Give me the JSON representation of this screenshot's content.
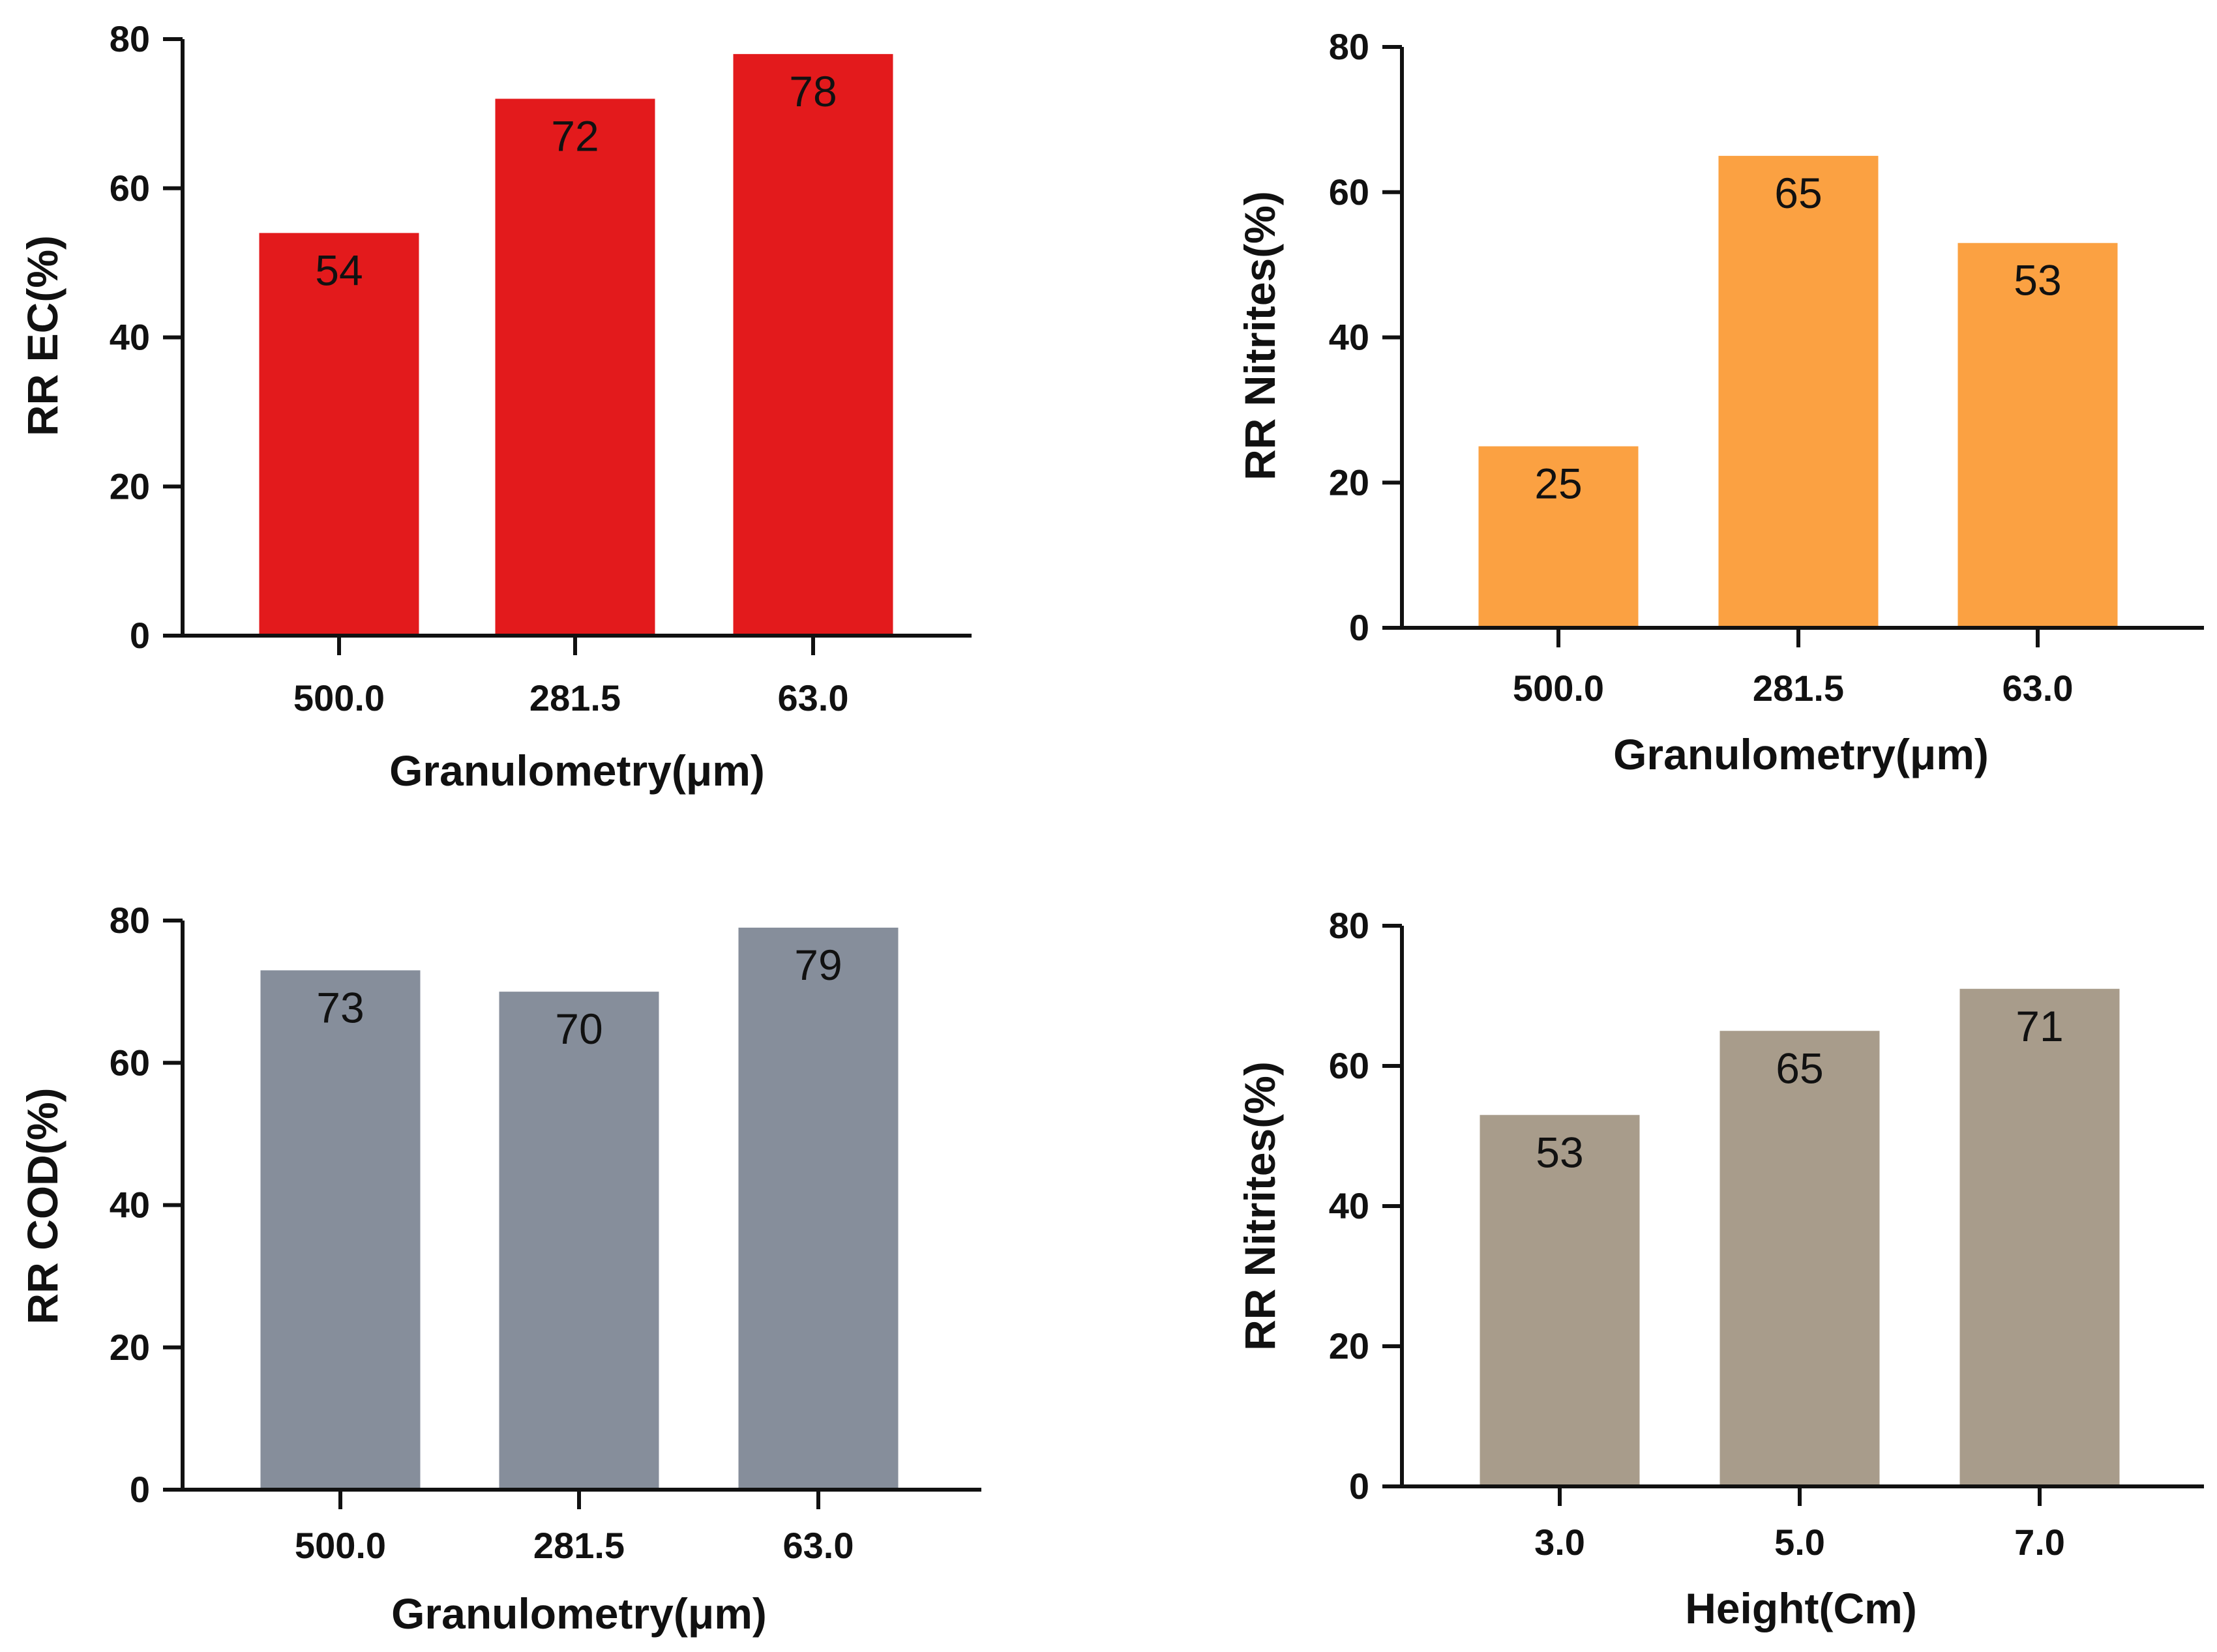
{
  "chart_data": [
    {
      "type": "bar",
      "categories": [
        "500.0",
        "281.5",
        "63.0"
      ],
      "values": [
        54,
        72,
        78
      ],
      "data_labels": [
        "54",
        "72",
        "78"
      ],
      "title": "",
      "xlabel": "Granulometry(μm)",
      "ylabel": "RR EC(%)",
      "ylim": [
        0,
        80
      ],
      "yticks": [
        "0",
        "20",
        "40",
        "60",
        "80"
      ],
      "color": "#e31a1c",
      "grid": false
    },
    {
      "type": "bar",
      "categories": [
        "500.0",
        "281.5",
        "63.0"
      ],
      "values": [
        25,
        65,
        53
      ],
      "data_labels": [
        "25",
        "65",
        "53"
      ],
      "title": "",
      "xlabel": "Granulometry(μm)",
      "ylabel": "RR Nitrites(%)",
      "ylim": [
        0,
        80
      ],
      "yticks": [
        "0",
        "20",
        "40",
        "60",
        "80"
      ],
      "color": "#fba142",
      "grid": false
    },
    {
      "type": "bar",
      "categories": [
        "500.0",
        "281.5",
        "63.0"
      ],
      "values": [
        73,
        70,
        79
      ],
      "data_labels": [
        "73",
        "70",
        "79"
      ],
      "title": "",
      "xlabel": "Granulometry(μm)",
      "ylabel": "RR COD(%)",
      "ylim": [
        0,
        80
      ],
      "yticks": [
        "0",
        "20",
        "40",
        "60",
        "80"
      ],
      "color": "#868e9b",
      "grid": false
    },
    {
      "type": "bar",
      "categories": [
        "3.0",
        "5.0",
        "7.0"
      ],
      "values": [
        53,
        65,
        71
      ],
      "data_labels": [
        "53",
        "65",
        "71"
      ],
      "title": "",
      "xlabel": "Height(Cm)",
      "ylabel": "RR Nitrites(%)",
      "ylim": [
        0,
        80
      ],
      "yticks": [
        "0",
        "20",
        "40",
        "60",
        "80"
      ],
      "color": "#a89c8b",
      "grid": false
    }
  ]
}
